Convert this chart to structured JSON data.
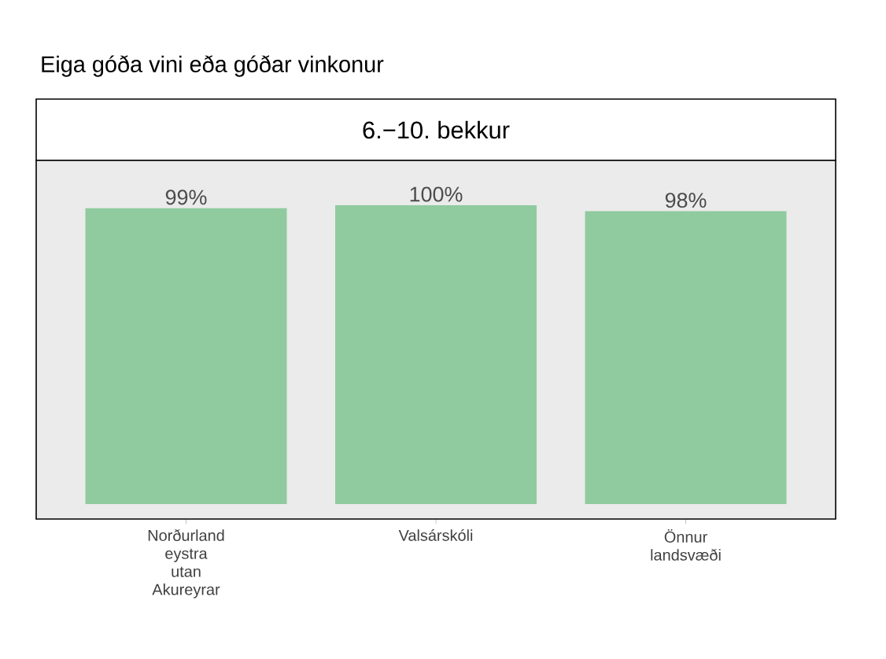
{
  "chart_data": {
    "type": "bar",
    "title": "Eiga góða vini eða góðar vinkonur",
    "subtitle": "6.−10. bekkur",
    "categories": [
      "Norðurland eystra utan Akureyrar",
      "Valsárskóli",
      "Önnur landsvæði"
    ],
    "values": [
      99,
      100,
      98
    ],
    "value_labels": [
      "99%",
      "100%",
      "98%"
    ],
    "color": "#8fcb9f",
    "ylim": [
      -5,
      115
    ],
    "tick_labels": "x"
  }
}
